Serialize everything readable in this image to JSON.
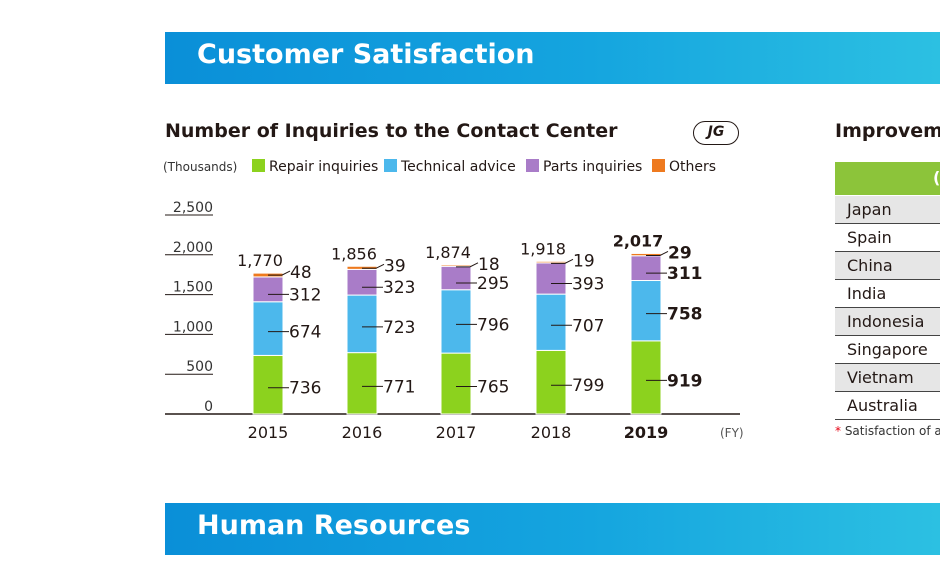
{
  "section_banners": {
    "top": "Customer Satisfaction",
    "bottom": "Human Resources"
  },
  "chart_data": {
    "type": "bar",
    "stacked": true,
    "title": "Number of Inquiries to the Contact Center",
    "badge": "JG",
    "unit_label": "(Thousands)",
    "xlabel": "(FY)",
    "categories": [
      "2015",
      "2016",
      "2017",
      "2018",
      "2019"
    ],
    "highlighted_category": "2019",
    "y_ticks": [
      "0",
      "500",
      "1,000",
      "1,500",
      "2,000",
      "2,500"
    ],
    "ylim": [
      0,
      2500
    ],
    "series": [
      {
        "name": "Repair inquiries",
        "color": "#8cd21e",
        "values": [
          736,
          771,
          765,
          799,
          919
        ],
        "labels": [
          "736",
          "771",
          "765",
          "799",
          "919"
        ]
      },
      {
        "name": "Technical advice",
        "color": "#4cb8ec",
        "values": [
          674,
          723,
          796,
          707,
          758
        ],
        "labels": [
          "674",
          "723",
          "796",
          "707",
          "758"
        ]
      },
      {
        "name": "Parts inquiries",
        "color": "#a97cc8",
        "values": [
          312,
          323,
          295,
          393,
          311
        ],
        "labels": [
          "312",
          "323",
          "295",
          "393",
          "311"
        ]
      },
      {
        "name": "Others",
        "color": "#ee7a1f",
        "values": [
          48,
          39,
          18,
          19,
          29
        ],
        "labels": [
          "48",
          "39",
          "18",
          "19",
          "29"
        ]
      }
    ],
    "totals": [
      "1,770",
      "1,856",
      "1,874",
      "1,918",
      "2,017"
    ]
  },
  "right_panel": {
    "title": "Improvem",
    "header_text": "(",
    "countries": [
      "Japan",
      "Spain",
      "China",
      "India",
      "Indonesia",
      "Singapore",
      "Vietnam",
      "Australia"
    ],
    "footnote_mark": "*",
    "footnote": " Satisfaction of a"
  }
}
